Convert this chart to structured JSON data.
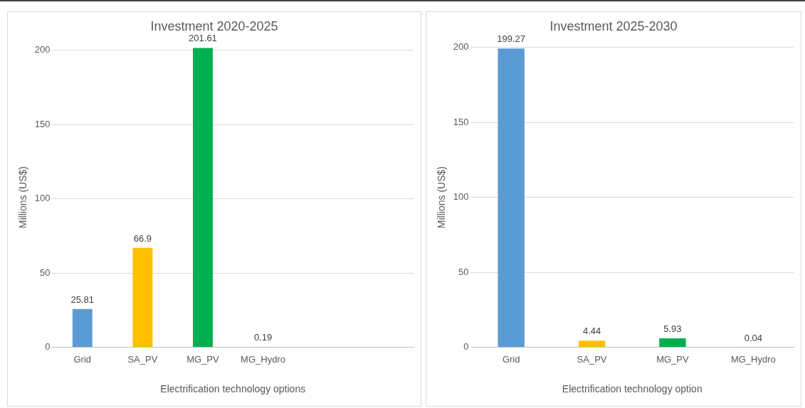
{
  "chart_data": [
    {
      "type": "bar",
      "title": "Investment 2020-2025",
      "xlabel": "Electrification technology options",
      "ylabel": "Millions (US$)",
      "categories": [
        "Grid",
        "SA_PV",
        "MG_PV",
        "MG_Hydro",
        null,
        null
      ],
      "values": [
        25.81,
        66.9,
        201.61,
        0.19,
        null,
        null
      ],
      "colors": [
        "#5b9bd5",
        "#ffc000",
        "#00b050",
        "#a5a5a5",
        "#5b9bd5",
        "#5b9bd5"
      ],
      "ylim": [
        0,
        202
      ],
      "yticks": [
        0,
        50,
        100,
        150,
        200
      ],
      "grid": "y",
      "legend": false,
      "data_labels": true
    },
    {
      "type": "bar",
      "title": "Investment 2025-2030",
      "xlabel": "Electrification technology option",
      "ylabel": "Millions (US$)",
      "categories": [
        "Grid",
        "SA_PV",
        "MG_PV",
        "MG_Hydro"
      ],
      "values": [
        199.27,
        4.44,
        5.93,
        0.04
      ],
      "colors": [
        "#5b9bd5",
        "#ffc000",
        "#00b050",
        "#a5a5a5"
      ],
      "ylim": [
        0,
        200
      ],
      "yticks": [
        0,
        50,
        100,
        150,
        200
      ],
      "grid": "y",
      "legend": false,
      "data_labels": true
    }
  ]
}
